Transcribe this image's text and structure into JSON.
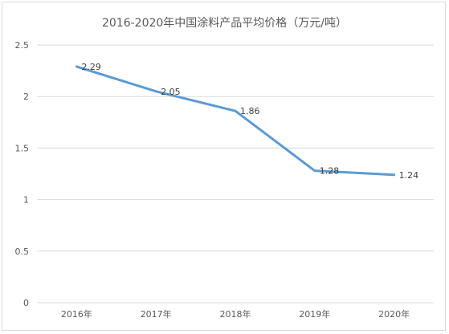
{
  "chart_data": {
    "type": "line",
    "title": "2016-2020年中国涂料产品平均价格（万元/吨）",
    "categories": [
      "2016年",
      "2017年",
      "2018年",
      "2019年",
      "2020年"
    ],
    "series": [
      {
        "values": [
          2.29,
          2.05,
          1.86,
          1.28,
          1.24
        ]
      }
    ],
    "data_labels": [
      "2.29",
      "2.05",
      "1.86",
      "1.28",
      "1.24"
    ],
    "y_ticks": [
      "0",
      "0.5",
      "1",
      "1.5",
      "2",
      "2.5"
    ],
    "y_tick_values": [
      0,
      0.5,
      1,
      1.5,
      2,
      2.5
    ],
    "ylim": [
      0,
      2.5
    ],
    "grid": true,
    "line_color": "#5b9bd5",
    "grid_color": "#d9d9d9"
  }
}
